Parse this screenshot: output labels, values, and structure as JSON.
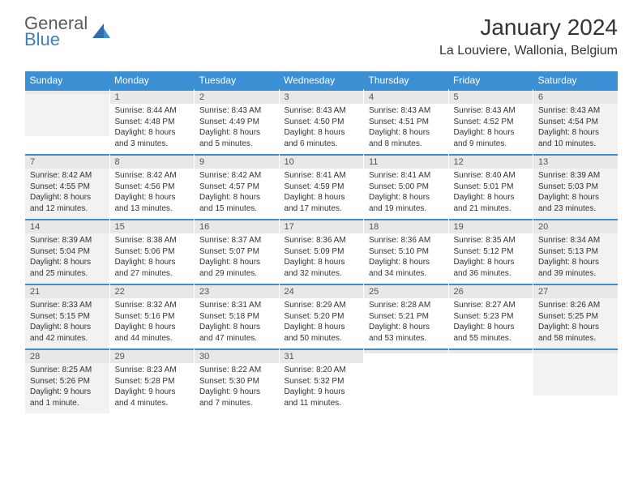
{
  "brand": {
    "line1": "General",
    "line2": "Blue",
    "color_gray": "#5a5a5a",
    "color_blue": "#3b7fc4"
  },
  "title": "January 2024",
  "subtitle": "La Louviere, Wallonia, Belgium",
  "colors": {
    "header_bg": "#3b8fd4",
    "header_fg": "#ffffff",
    "daynum_bg": "#e8e8e8",
    "row_border": "#3b8fd4",
    "shade_bg": "#f2f2f2",
    "text": "#333333"
  },
  "weekdays": [
    "Sunday",
    "Monday",
    "Tuesday",
    "Wednesday",
    "Thursday",
    "Friday",
    "Saturday"
  ],
  "weeks": [
    [
      {
        "n": "",
        "sr": "",
        "ss": "",
        "dl": ""
      },
      {
        "n": "1",
        "sr": "Sunrise: 8:44 AM",
        "ss": "Sunset: 4:48 PM",
        "dl": "Daylight: 8 hours and 3 minutes."
      },
      {
        "n": "2",
        "sr": "Sunrise: 8:43 AM",
        "ss": "Sunset: 4:49 PM",
        "dl": "Daylight: 8 hours and 5 minutes."
      },
      {
        "n": "3",
        "sr": "Sunrise: 8:43 AM",
        "ss": "Sunset: 4:50 PM",
        "dl": "Daylight: 8 hours and 6 minutes."
      },
      {
        "n": "4",
        "sr": "Sunrise: 8:43 AM",
        "ss": "Sunset: 4:51 PM",
        "dl": "Daylight: 8 hours and 8 minutes."
      },
      {
        "n": "5",
        "sr": "Sunrise: 8:43 AM",
        "ss": "Sunset: 4:52 PM",
        "dl": "Daylight: 8 hours and 9 minutes."
      },
      {
        "n": "6",
        "sr": "Sunrise: 8:43 AM",
        "ss": "Sunset: 4:54 PM",
        "dl": "Daylight: 8 hours and 10 minutes."
      }
    ],
    [
      {
        "n": "7",
        "sr": "Sunrise: 8:42 AM",
        "ss": "Sunset: 4:55 PM",
        "dl": "Daylight: 8 hours and 12 minutes."
      },
      {
        "n": "8",
        "sr": "Sunrise: 8:42 AM",
        "ss": "Sunset: 4:56 PM",
        "dl": "Daylight: 8 hours and 13 minutes."
      },
      {
        "n": "9",
        "sr": "Sunrise: 8:42 AM",
        "ss": "Sunset: 4:57 PM",
        "dl": "Daylight: 8 hours and 15 minutes."
      },
      {
        "n": "10",
        "sr": "Sunrise: 8:41 AM",
        "ss": "Sunset: 4:59 PM",
        "dl": "Daylight: 8 hours and 17 minutes."
      },
      {
        "n": "11",
        "sr": "Sunrise: 8:41 AM",
        "ss": "Sunset: 5:00 PM",
        "dl": "Daylight: 8 hours and 19 minutes."
      },
      {
        "n": "12",
        "sr": "Sunrise: 8:40 AM",
        "ss": "Sunset: 5:01 PM",
        "dl": "Daylight: 8 hours and 21 minutes."
      },
      {
        "n": "13",
        "sr": "Sunrise: 8:39 AM",
        "ss": "Sunset: 5:03 PM",
        "dl": "Daylight: 8 hours and 23 minutes."
      }
    ],
    [
      {
        "n": "14",
        "sr": "Sunrise: 8:39 AM",
        "ss": "Sunset: 5:04 PM",
        "dl": "Daylight: 8 hours and 25 minutes."
      },
      {
        "n": "15",
        "sr": "Sunrise: 8:38 AM",
        "ss": "Sunset: 5:06 PM",
        "dl": "Daylight: 8 hours and 27 minutes."
      },
      {
        "n": "16",
        "sr": "Sunrise: 8:37 AM",
        "ss": "Sunset: 5:07 PM",
        "dl": "Daylight: 8 hours and 29 minutes."
      },
      {
        "n": "17",
        "sr": "Sunrise: 8:36 AM",
        "ss": "Sunset: 5:09 PM",
        "dl": "Daylight: 8 hours and 32 minutes."
      },
      {
        "n": "18",
        "sr": "Sunrise: 8:36 AM",
        "ss": "Sunset: 5:10 PM",
        "dl": "Daylight: 8 hours and 34 minutes."
      },
      {
        "n": "19",
        "sr": "Sunrise: 8:35 AM",
        "ss": "Sunset: 5:12 PM",
        "dl": "Daylight: 8 hours and 36 minutes."
      },
      {
        "n": "20",
        "sr": "Sunrise: 8:34 AM",
        "ss": "Sunset: 5:13 PM",
        "dl": "Daylight: 8 hours and 39 minutes."
      }
    ],
    [
      {
        "n": "21",
        "sr": "Sunrise: 8:33 AM",
        "ss": "Sunset: 5:15 PM",
        "dl": "Daylight: 8 hours and 42 minutes."
      },
      {
        "n": "22",
        "sr": "Sunrise: 8:32 AM",
        "ss": "Sunset: 5:16 PM",
        "dl": "Daylight: 8 hours and 44 minutes."
      },
      {
        "n": "23",
        "sr": "Sunrise: 8:31 AM",
        "ss": "Sunset: 5:18 PM",
        "dl": "Daylight: 8 hours and 47 minutes."
      },
      {
        "n": "24",
        "sr": "Sunrise: 8:29 AM",
        "ss": "Sunset: 5:20 PM",
        "dl": "Daylight: 8 hours and 50 minutes."
      },
      {
        "n": "25",
        "sr": "Sunrise: 8:28 AM",
        "ss": "Sunset: 5:21 PM",
        "dl": "Daylight: 8 hours and 53 minutes."
      },
      {
        "n": "26",
        "sr": "Sunrise: 8:27 AM",
        "ss": "Sunset: 5:23 PM",
        "dl": "Daylight: 8 hours and 55 minutes."
      },
      {
        "n": "27",
        "sr": "Sunrise: 8:26 AM",
        "ss": "Sunset: 5:25 PM",
        "dl": "Daylight: 8 hours and 58 minutes."
      }
    ],
    [
      {
        "n": "28",
        "sr": "Sunrise: 8:25 AM",
        "ss": "Sunset: 5:26 PM",
        "dl": "Daylight: 9 hours and 1 minute."
      },
      {
        "n": "29",
        "sr": "Sunrise: 8:23 AM",
        "ss": "Sunset: 5:28 PM",
        "dl": "Daylight: 9 hours and 4 minutes."
      },
      {
        "n": "30",
        "sr": "Sunrise: 8:22 AM",
        "ss": "Sunset: 5:30 PM",
        "dl": "Daylight: 9 hours and 7 minutes."
      },
      {
        "n": "31",
        "sr": "Sunrise: 8:20 AM",
        "ss": "Sunset: 5:32 PM",
        "dl": "Daylight: 9 hours and 11 minutes."
      },
      {
        "n": "",
        "sr": "",
        "ss": "",
        "dl": ""
      },
      {
        "n": "",
        "sr": "",
        "ss": "",
        "dl": ""
      },
      {
        "n": "",
        "sr": "",
        "ss": "",
        "dl": ""
      }
    ]
  ]
}
